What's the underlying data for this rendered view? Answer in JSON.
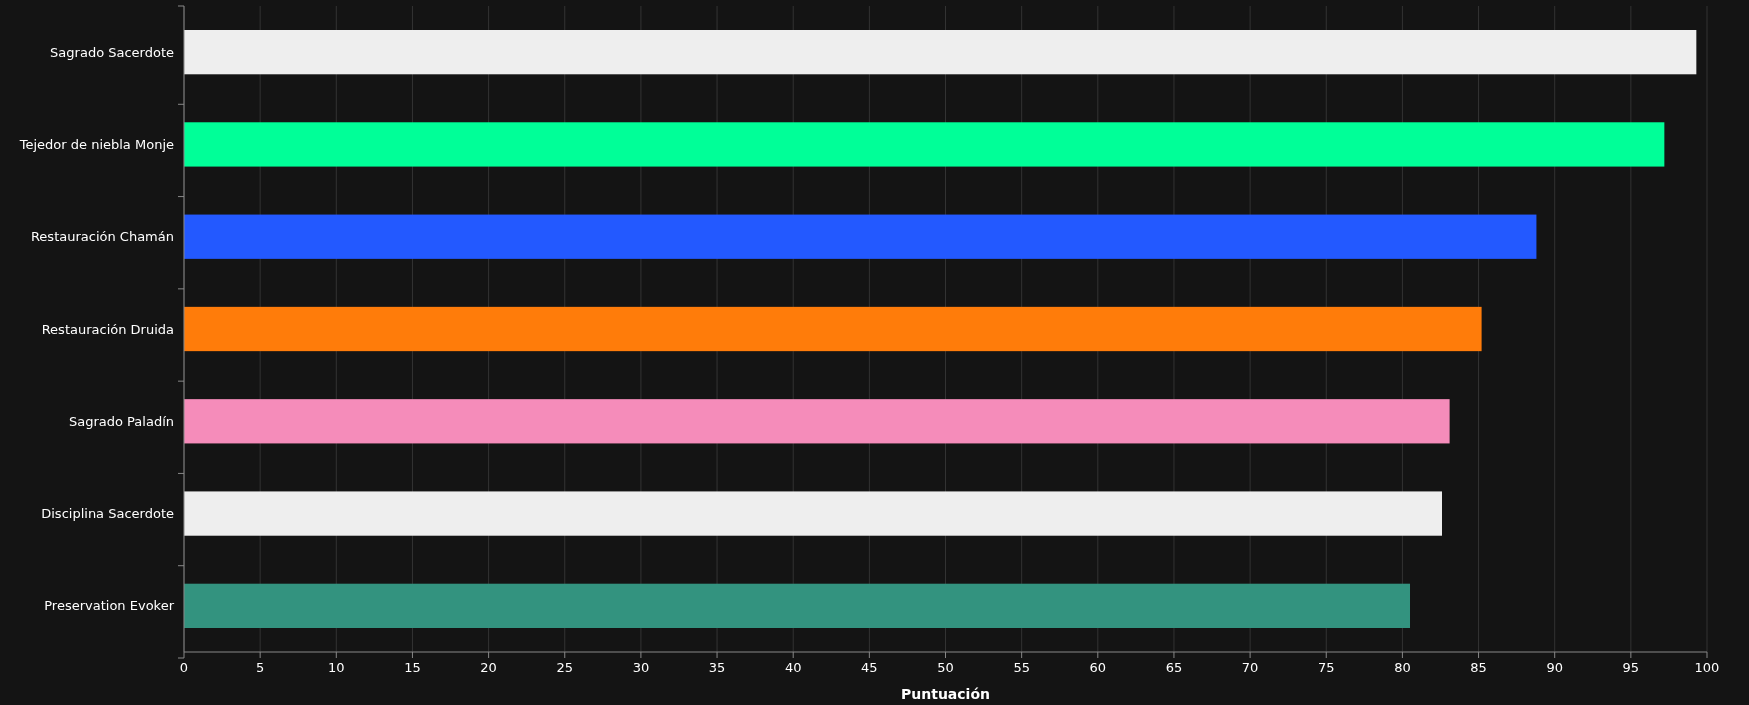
{
  "chart_data": {
    "type": "bar",
    "orientation": "horizontal",
    "xlabel": "Puntuación",
    "categories": [
      "Sagrado Sacerdote",
      "Tejedor de niebla Monje",
      "Restauración Chamán",
      "Restauración Druida",
      "Sagrado Paladín",
      "Disciplina Sacerdote",
      "Preservation Evoker"
    ],
    "values": [
      99.3,
      97.2,
      88.8,
      85.2,
      83.1,
      82.6,
      80.5
    ],
    "colors": [
      "#eeeeee",
      "#00ff98",
      "#2359ff",
      "#ff7c0a",
      "#f58cba",
      "#eeeeee",
      "#33937f"
    ],
    "xlim": [
      0,
      100
    ],
    "xticks": [
      0,
      5,
      10,
      15,
      20,
      25,
      30,
      35,
      40,
      45,
      50,
      55,
      60,
      65,
      70,
      75,
      80,
      85,
      90,
      95,
      100
    ],
    "grid": "x"
  }
}
